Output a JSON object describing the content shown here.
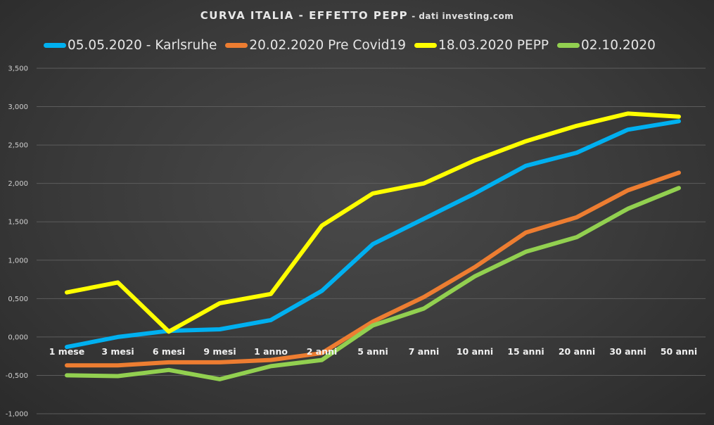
{
  "chart_data": {
    "type": "line",
    "title": "CURVA ITALIA - EFFETTO PEPP",
    "subtitle": "- dati investing.com",
    "xlabel": "",
    "ylabel": "",
    "ylim": [
      -1,
      3.5
    ],
    "yticks": [
      "-1,000",
      "-0,500",
      "0,000",
      "0,500",
      "1,000",
      "1,500",
      "2,000",
      "2,500",
      "3,000",
      "3,500"
    ],
    "grid": true,
    "legend_position": "top",
    "categories": [
      "1 mese",
      "3 mesi",
      "6 mesi",
      "9 mesi",
      "1 anno",
      "2 anni",
      "5 anni",
      "7 anni",
      "10 anni",
      "15 anni",
      "20 anni",
      "30 anni",
      "50 anni"
    ],
    "series": [
      {
        "name": "05.05.2020 - Karlsruhe",
        "color": "#00b0f0",
        "values": [
          -0.13,
          0.0,
          0.08,
          0.1,
          0.22,
          0.6,
          1.21,
          1.54,
          1.87,
          2.23,
          2.4,
          2.7,
          2.81
        ]
      },
      {
        "name": "20.02.2020 Pre Covid19",
        "color": "#ed7d31",
        "values": [
          -0.37,
          -0.37,
          -0.33,
          -0.33,
          -0.3,
          -0.21,
          0.2,
          0.52,
          0.91,
          1.36,
          1.56,
          1.91,
          2.14
        ]
      },
      {
        "name": "18.03.2020 PEPP",
        "color": "#ffff00",
        "values": [
          0.58,
          0.71,
          0.07,
          0.44,
          0.56,
          1.45,
          1.87,
          2.0,
          2.3,
          2.55,
          2.75,
          2.91,
          2.87
        ]
      },
      {
        "name": "02.10.2020",
        "color": "#92d050",
        "values": [
          -0.5,
          -0.51,
          -0.43,
          -0.55,
          -0.38,
          -0.3,
          0.15,
          0.37,
          0.79,
          1.11,
          1.3,
          1.67,
          1.94
        ]
      }
    ]
  }
}
